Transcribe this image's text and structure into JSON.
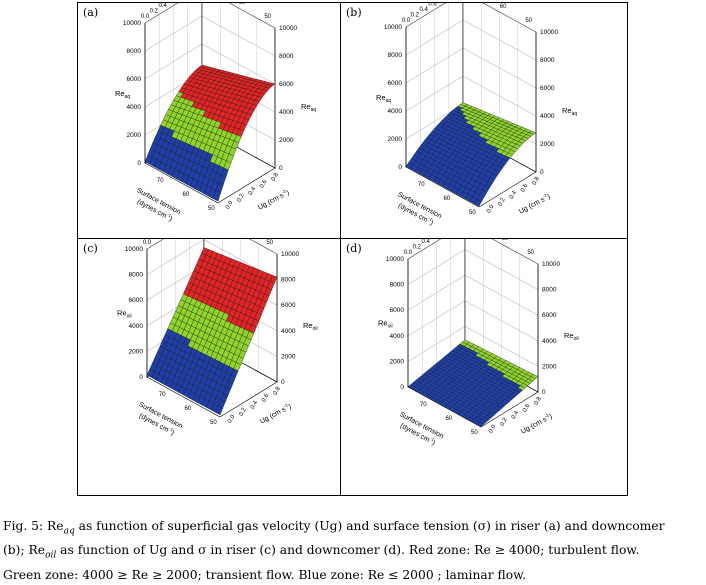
{
  "panels": [
    {
      "label": "(a)",
      "z_label": "Re",
      "z_sub": "aq",
      "z_ticks": [
        "0",
        "2000",
        "4000",
        "6000",
        "8000",
        "10000"
      ],
      "ug_ticks": [
        "0.0",
        "0.2",
        "0.4",
        "0.6",
        "0.8"
      ],
      "sigma_ticks": [
        "50",
        "60",
        "70"
      ],
      "ug_label": "Ug (cm s",
      "ug_label_sup": "-1",
      "sigma_label_1": "Surface tension",
      "sigma_label_2": "(dynes cm",
      "sigma_label_2_sup": "-1",
      "zones": [
        "blue",
        "green",
        "red"
      ]
    },
    {
      "label": "(b)",
      "z_label": "Re",
      "z_sub": "aq",
      "z_ticks": [
        "0",
        "2000",
        "4000",
        "6000",
        "8000",
        "10000"
      ],
      "ug_ticks": [
        "0.0",
        "0.2",
        "0.4",
        "0.6",
        "0.8"
      ],
      "sigma_ticks": [
        "50",
        "60",
        "70"
      ],
      "ug_label": "Ug (cm s",
      "ug_label_sup": "-1",
      "sigma_label_1": "Surface tension",
      "sigma_label_2": "(dynes cm",
      "sigma_label_2_sup": "-1",
      "zones": [
        "blue",
        "green"
      ]
    },
    {
      "label": "(c)",
      "z_label": "Re",
      "z_sub": "oil",
      "z_ticks": [
        "0",
        "2000",
        "4000",
        "6000",
        "8000",
        "10000"
      ],
      "ug_ticks": [
        "0.0",
        "0.2",
        "0.4",
        "0.6",
        "0.8"
      ],
      "sigma_ticks": [
        "50",
        "60",
        "70"
      ],
      "ug_label": "Ug (cm s",
      "ug_label_sup": "-1",
      "sigma_label_1": "Surface tension",
      "sigma_label_2": "(dynes cm",
      "sigma_label_2_sup": "-1",
      "zones": [
        "blue",
        "green",
        "red"
      ]
    },
    {
      "label": "(d)",
      "z_label": "Re",
      "z_sub": "oil",
      "z_ticks": [
        "0",
        "2000",
        "4000",
        "6000",
        "8000",
        "10000"
      ],
      "ug_ticks": [
        "0.0",
        "0.2",
        "0.4",
        "0.6",
        "0.8"
      ],
      "sigma_ticks": [
        "50",
        "60",
        "70"
      ],
      "ug_label": "Ug (cm s",
      "ug_label_sup": "-1",
      "sigma_label_1": "Surface tension",
      "sigma_label_2": "(dynes cm",
      "sigma_label_2_sup": "-1",
      "zones": [
        "blue",
        "green"
      ]
    }
  ],
  "caption": {
    "line1_a": "Fig. 5: Re",
    "line1_sub": "aq",
    "line1_b": " as function of superficial gas velocity (Ug) and surface tension (σ) in riser (a) and downcomer",
    "line2_a": "(b); Re",
    "line2_sub": "oil",
    "line2_b": " as function of Ug and σ in riser (c) and downcomer (d). Red zone: Re ≥ 4000; turbulent flow.",
    "line3": "Green zone: 4000 ≥ Re ≥ 2000; transient flow. Blue zone: Re ≤ 2000 ; laminar flow."
  },
  "colors": {
    "red": "#e32424",
    "green": "#8fd42a",
    "blue": "#1f3fa8",
    "mesh": "#1a1a1a"
  }
}
